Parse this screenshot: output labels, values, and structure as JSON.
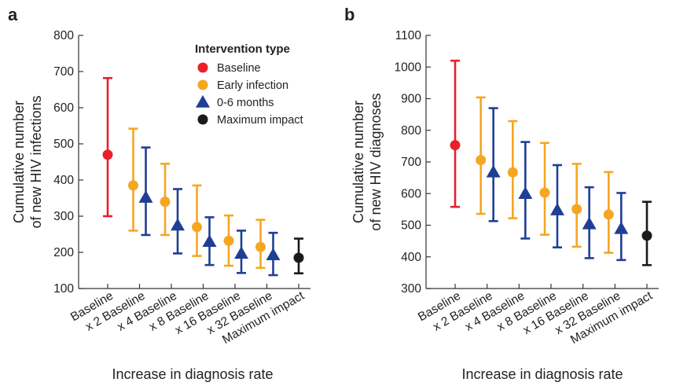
{
  "colors": {
    "baseline": "#e8202a",
    "early_infection": "#f5a623",
    "0_6_months": "#1f3f94",
    "maximum_impact": "#1a1a1a",
    "axis": "#333333"
  },
  "legend": {
    "title": "Intervention type",
    "items": [
      {
        "label": "Baseline",
        "color_key": "baseline",
        "marker": "circle"
      },
      {
        "label": "Early infection",
        "color_key": "early_infection",
        "marker": "circle"
      },
      {
        "label": "0-6 months",
        "color_key": "0_6_months",
        "marker": "triangle"
      },
      {
        "label": "Maximum impact",
        "color_key": "maximum_impact",
        "marker": "circle"
      }
    ]
  },
  "chart_data": [
    {
      "panel": "a",
      "type": "scatter",
      "ylabel": "Cumulative number\nof new HIV infections",
      "xlabel": "Increase in diagnosis rate",
      "ylim": [
        100,
        800
      ],
      "yticks": [
        100,
        200,
        300,
        400,
        500,
        600,
        700,
        800
      ],
      "categories": [
        "Baseline",
        "x 2 Baseline",
        "x 4 Baseline",
        "x 8 Baseline",
        "x 16 Baseline",
        "x 32 Baseline",
        "Maximum impact"
      ],
      "legend": true,
      "series": [
        {
          "name": "Baseline",
          "color_key": "baseline",
          "marker": "circle",
          "points": [
            {
              "cat": 0,
              "y": 470,
              "low": 300,
              "high": 682
            }
          ]
        },
        {
          "name": "Early infection",
          "color_key": "early_infection",
          "marker": "circle",
          "points": [
            {
              "cat": 1,
              "y": 385,
              "low": 260,
              "high": 542
            },
            {
              "cat": 2,
              "y": 340,
              "low": 248,
              "high": 445
            },
            {
              "cat": 3,
              "y": 270,
              "low": 190,
              "high": 385
            },
            {
              "cat": 4,
              "y": 232,
              "low": 163,
              "high": 302
            },
            {
              "cat": 5,
              "y": 215,
              "low": 157,
              "high": 290
            }
          ]
        },
        {
          "name": "0-6 months",
          "color_key": "0_6_months",
          "marker": "triangle",
          "points": [
            {
              "cat": 1,
              "y": 352,
              "low": 248,
              "high": 490
            },
            {
              "cat": 2,
              "y": 275,
              "low": 197,
              "high": 375
            },
            {
              "cat": 3,
              "y": 230,
              "low": 165,
              "high": 297
            },
            {
              "cat": 4,
              "y": 197,
              "low": 143,
              "high": 260
            },
            {
              "cat": 5,
              "y": 193,
              "low": 137,
              "high": 254
            }
          ]
        },
        {
          "name": "Maximum impact",
          "color_key": "maximum_impact",
          "marker": "circle",
          "points": [
            {
              "cat": 6,
              "y": 185,
              "low": 142,
              "high": 238
            }
          ]
        }
      ]
    },
    {
      "panel": "b",
      "type": "scatter",
      "ylabel": "Cumulative number\nof new HIV diagnoses",
      "xlabel": "Increase in diagnosis rate",
      "ylim": [
        300,
        1100
      ],
      "yticks": [
        300,
        400,
        500,
        600,
        700,
        800,
        900,
        1000,
        1100
      ],
      "categories": [
        "Baseline",
        "x 2 Baseline",
        "x 4 Baseline",
        "x 8 Baseline",
        "x 16 Baseline",
        "x 32 Baseline",
        "Maximum impact"
      ],
      "legend": false,
      "series": [
        {
          "name": "Baseline",
          "color_key": "baseline",
          "marker": "circle",
          "points": [
            {
              "cat": 0,
              "y": 753,
              "low": 558,
              "high": 1020
            }
          ]
        },
        {
          "name": "Early infection",
          "color_key": "early_infection",
          "marker": "circle",
          "points": [
            {
              "cat": 1,
              "y": 706,
              "low": 536,
              "high": 904
            },
            {
              "cat": 2,
              "y": 667,
              "low": 522,
              "high": 829
            },
            {
              "cat": 3,
              "y": 603,
              "low": 470,
              "high": 760
            },
            {
              "cat": 4,
              "y": 551,
              "low": 432,
              "high": 694
            },
            {
              "cat": 5,
              "y": 534,
              "low": 413,
              "high": 668
            }
          ]
        },
        {
          "name": "0-6 months",
          "color_key": "0_6_months",
          "marker": "triangle",
          "points": [
            {
              "cat": 1,
              "y": 668,
              "low": 513,
              "high": 870
            },
            {
              "cat": 2,
              "y": 600,
              "low": 458,
              "high": 763
            },
            {
              "cat": 3,
              "y": 548,
              "low": 430,
              "high": 690
            },
            {
              "cat": 4,
              "y": 504,
              "low": 396,
              "high": 620
            },
            {
              "cat": 5,
              "y": 489,
              "low": 390,
              "high": 602
            }
          ]
        },
        {
          "name": "Maximum impact",
          "color_key": "maximum_impact",
          "marker": "circle",
          "points": [
            {
              "cat": 6,
              "y": 467,
              "low": 374,
              "high": 574
            }
          ]
        }
      ]
    }
  ]
}
